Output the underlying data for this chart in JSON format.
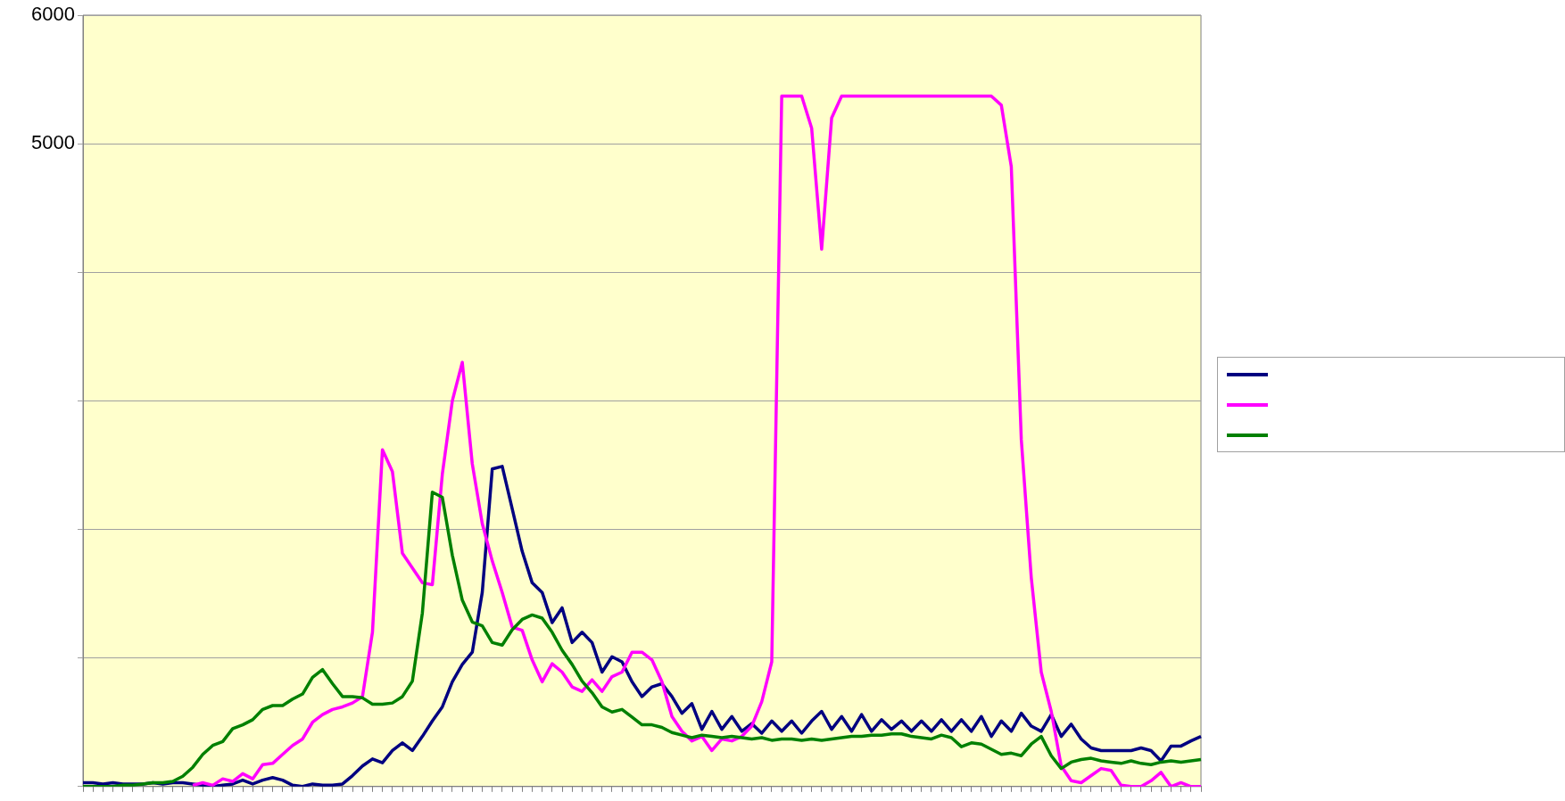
{
  "chart_data": {
    "type": "line",
    "categories": [
      null,
      null,
      null,
      null,
      null,
      null,
      null,
      null,
      null,
      null,
      null,
      null,
      null,
      null,
      null,
      null,
      null,
      null,
      null,
      null,
      null,
      null,
      null,
      null,
      null,
      null,
      null,
      null,
      null,
      null,
      null,
      null,
      null,
      null,
      null,
      null,
      null,
      null,
      null,
      null,
      null,
      null,
      null,
      null,
      null,
      null,
      null,
      null,
      null,
      null,
      null,
      null,
      null,
      null,
      null,
      null,
      null,
      null,
      null,
      null,
      null,
      null,
      null,
      null,
      null,
      null,
      null,
      null,
      null,
      null,
      null,
      null,
      null,
      null,
      null,
      null,
      null,
      null,
      null,
      null,
      null,
      null,
      null,
      null,
      null,
      null,
      null,
      null,
      null,
      null,
      null,
      null,
      null,
      null,
      null,
      null,
      null,
      null,
      null,
      null,
      null,
      null,
      null,
      null,
      null,
      null,
      null,
      null,
      null,
      null,
      null,
      null,
      null
    ],
    "series": [
      {
        "color": "#000080",
        "values": [
          30,
          30,
          20,
          30,
          20,
          20,
          20,
          30,
          20,
          30,
          30,
          20,
          10,
          0,
          10,
          20,
          50,
          20,
          50,
          70,
          50,
          10,
          0,
          20,
          10,
          10,
          20,
          85,
          160,
          215,
          185,
          280,
          340,
          280,
          390,
          510,
          620,
          815,
          950,
          1045,
          1510,
          2470,
          2490,
          2160,
          1830,
          1585,
          1510,
          1275,
          1390,
          1120,
          1200,
          1120,
          890,
          1010,
          970,
          815,
          700,
          775,
          800,
          700,
          570,
          645,
          445,
          585,
          445,
          545,
          430,
          490,
          415,
          510,
          430,
          510,
          415,
          510,
          585,
          445,
          545,
          430,
          560,
          430,
          520,
          445,
          510,
          430,
          510,
          430,
          520,
          430,
          520,
          430,
          545,
          390,
          510,
          430,
          570,
          470,
          430,
          560,
          390,
          485,
          370,
          300,
          280,
          280,
          280,
          280,
          300,
          280,
          200,
          315,
          315,
          355,
          390
        ]
      },
      {
        "color": "#ff00ff",
        "values": [
          null,
          null,
          null,
          null,
          null,
          null,
          null,
          null,
          null,
          null,
          null,
          10,
          30,
          10,
          60,
          40,
          100,
          60,
          170,
          180,
          250,
          320,
          370,
          500,
          560,
          600,
          620,
          650,
          700,
          1200,
          2620,
          2450,
          1815,
          1700,
          1585,
          1570,
          2430,
          3000,
          3300,
          2510,
          2045,
          1755,
          1510,
          1240,
          1215,
          985,
          815,
          955,
          890,
          775,
          740,
          830,
          740,
          855,
          890,
          1045,
          1045,
          985,
          815,
          545,
          430,
          355,
          390,
          280,
          370,
          355,
          390,
          470,
          660,
          970,
          5370,
          5370,
          5370,
          5120,
          4180,
          5200,
          5370,
          5370,
          5370,
          5370,
          5370,
          5370,
          5370,
          5370,
          5370,
          5370,
          5370,
          5370,
          5370,
          5370,
          5370,
          5370,
          5300,
          4820,
          2700,
          1625,
          890,
          585,
          160,
          45,
          30,
          85,
          140,
          125,
          10,
          0,
          0,
          45,
          110,
          0,
          30,
          0,
          0
        ]
      },
      {
        "color": "#008000",
        "values": [
          0,
          0,
          0,
          0,
          10,
          10,
          20,
          30,
          30,
          40,
          80,
          150,
          250,
          320,
          350,
          450,
          480,
          520,
          600,
          630,
          630,
          680,
          720,
          850,
          910,
          800,
          700,
          700,
          690,
          640,
          640,
          650,
          700,
          820,
          1350,
          2290,
          2250,
          1800,
          1450,
          1280,
          1250,
          1120,
          1100,
          1220,
          1300,
          1335,
          1310,
          1200,
          1060,
          950,
          820,
          730,
          620,
          580,
          600,
          540,
          480,
          480,
          460,
          420,
          400,
          380,
          400,
          390,
          380,
          390,
          380,
          370,
          380,
          360,
          370,
          370,
          360,
          370,
          360,
          370,
          380,
          390,
          390,
          400,
          400,
          410,
          410,
          390,
          380,
          370,
          400,
          380,
          310,
          340,
          330,
          290,
          250,
          260,
          240,
          330,
          390,
          240,
          140,
          190,
          210,
          220,
          200,
          190,
          180,
          200,
          180,
          170,
          190,
          200,
          190,
          200,
          210
        ]
      }
    ],
    "ylim": [
      0,
      6000
    ],
    "yticks": [
      {
        "value": 0,
        "label": null
      },
      {
        "value": 1000,
        "label": null
      },
      {
        "value": 2000,
        "label": null
      },
      {
        "value": 3000,
        "label": null
      },
      {
        "value": 4000,
        "label": null
      },
      {
        "value": 5000,
        "label": "5000"
      },
      6000
    ],
    "tick_labels": "y",
    "grid": "y",
    "marker": "none",
    "line_style": "solid"
  }
}
